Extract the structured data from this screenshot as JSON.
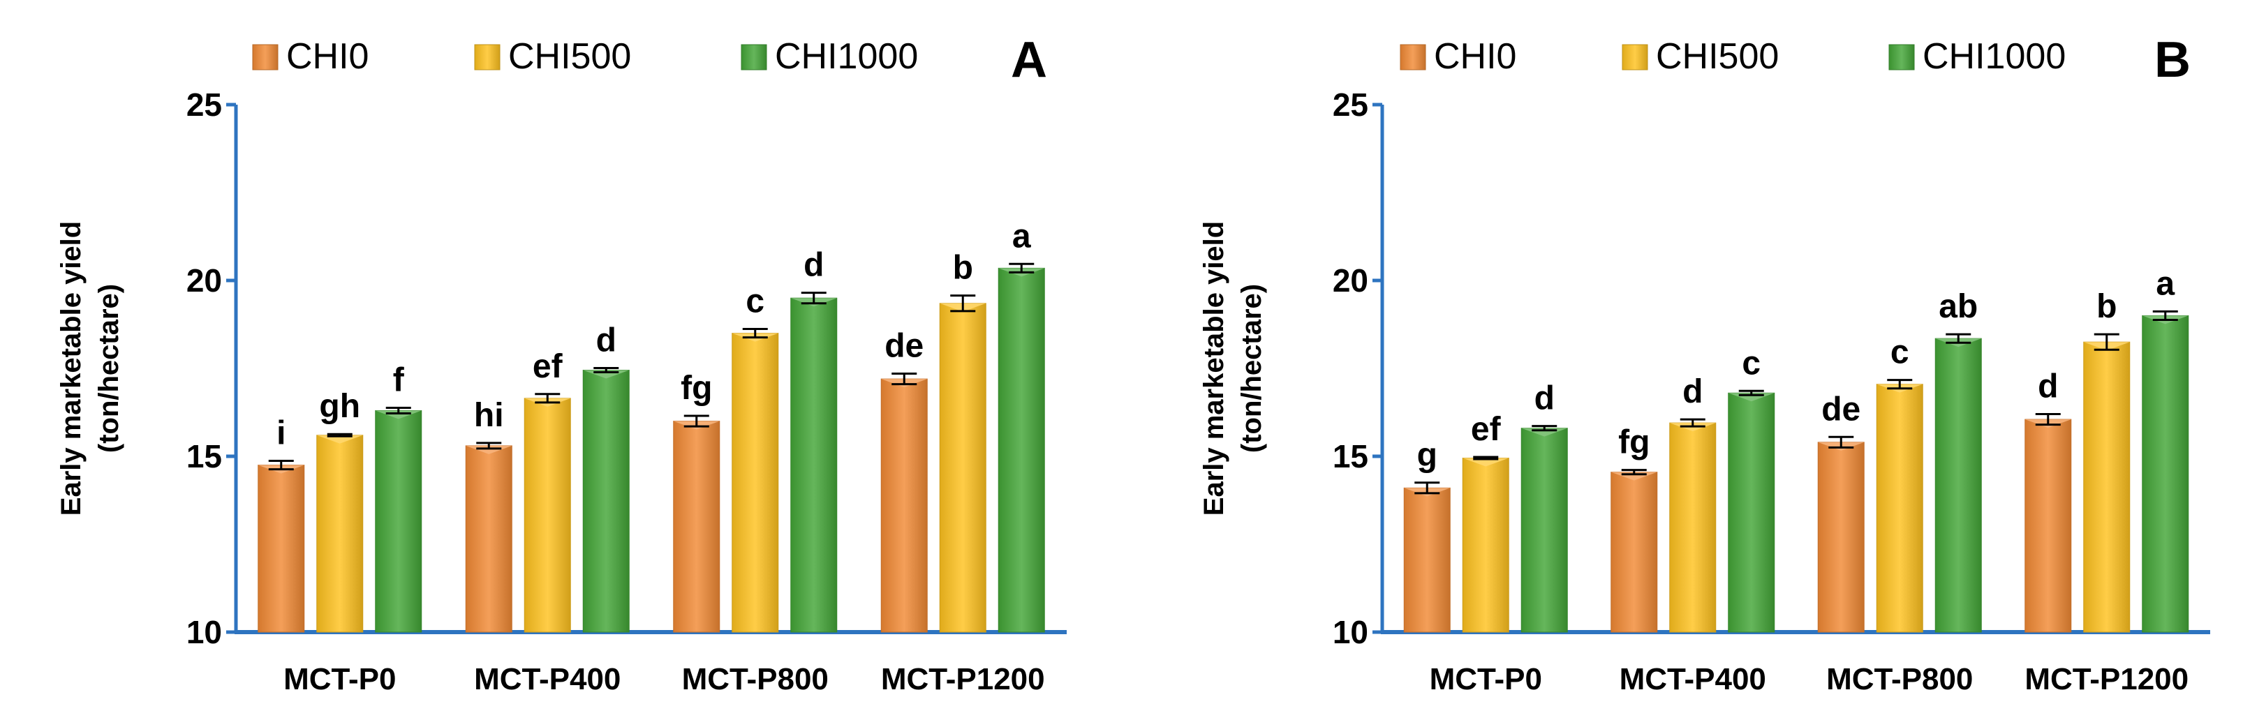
{
  "colors": {
    "CHI0": "#F28A34",
    "CHI500": "#FFC21F",
    "CHI1000": "#43A637",
    "axis": "#2E74C0",
    "text": "#000000"
  },
  "chart_data": [
    {
      "type": "bar",
      "panel_label": "A",
      "ylabel": "Early marketable yield\n(ton/hectare)",
      "xlabel": "",
      "ylim": [
        10,
        25
      ],
      "yticks": [
        10,
        15,
        20,
        25
      ],
      "grid": false,
      "legend_position": "top",
      "categories": [
        "MCT-P0",
        "MCT-P400",
        "MCT-P800",
        "MCT-P1200"
      ],
      "series": [
        {
          "name": "CHI0",
          "values": [
            14.75,
            15.3,
            16.0,
            17.2
          ],
          "errors": [
            0.12,
            0.08,
            0.15,
            0.15
          ],
          "labels": [
            "i",
            "hi",
            "fg",
            "de"
          ]
        },
        {
          "name": "CHI500",
          "values": [
            15.6,
            16.65,
            18.5,
            19.35
          ],
          "errors": [
            0.03,
            0.12,
            0.12,
            0.22
          ],
          "labels": [
            "gh",
            "ef",
            "c",
            "b"
          ]
        },
        {
          "name": "CHI1000",
          "values": [
            16.3,
            17.45,
            19.5,
            20.35
          ],
          "errors": [
            0.08,
            0.06,
            0.15,
            0.12
          ],
          "labels": [
            "f",
            "d",
            "d",
            "a"
          ]
        }
      ]
    },
    {
      "type": "bar",
      "panel_label": "B",
      "ylabel": "Early marketable yield\n(ton/hectare)",
      "xlabel": "",
      "ylim": [
        10,
        25
      ],
      "yticks": [
        10,
        15,
        20,
        25
      ],
      "grid": false,
      "legend_position": "top",
      "categories": [
        "MCT-P0",
        "MCT-P400",
        "MCT-P800",
        "MCT-P1200"
      ],
      "series": [
        {
          "name": "CHI0",
          "values": [
            14.1,
            14.55,
            15.4,
            16.05
          ],
          "errors": [
            0.15,
            0.06,
            0.15,
            0.15
          ],
          "labels": [
            "g",
            "fg",
            "de",
            "d"
          ]
        },
        {
          "name": "CHI500",
          "values": [
            14.95,
            15.95,
            17.05,
            18.25
          ],
          "errors": [
            0.03,
            0.1,
            0.12,
            0.22
          ],
          "labels": [
            "ef",
            "d",
            "c",
            "b"
          ]
        },
        {
          "name": "CHI1000",
          "values": [
            15.8,
            16.8,
            18.35,
            19.0
          ],
          "errors": [
            0.06,
            0.06,
            0.12,
            0.12
          ],
          "labels": [
            "d",
            "c",
            "ab",
            "a"
          ]
        }
      ]
    }
  ]
}
